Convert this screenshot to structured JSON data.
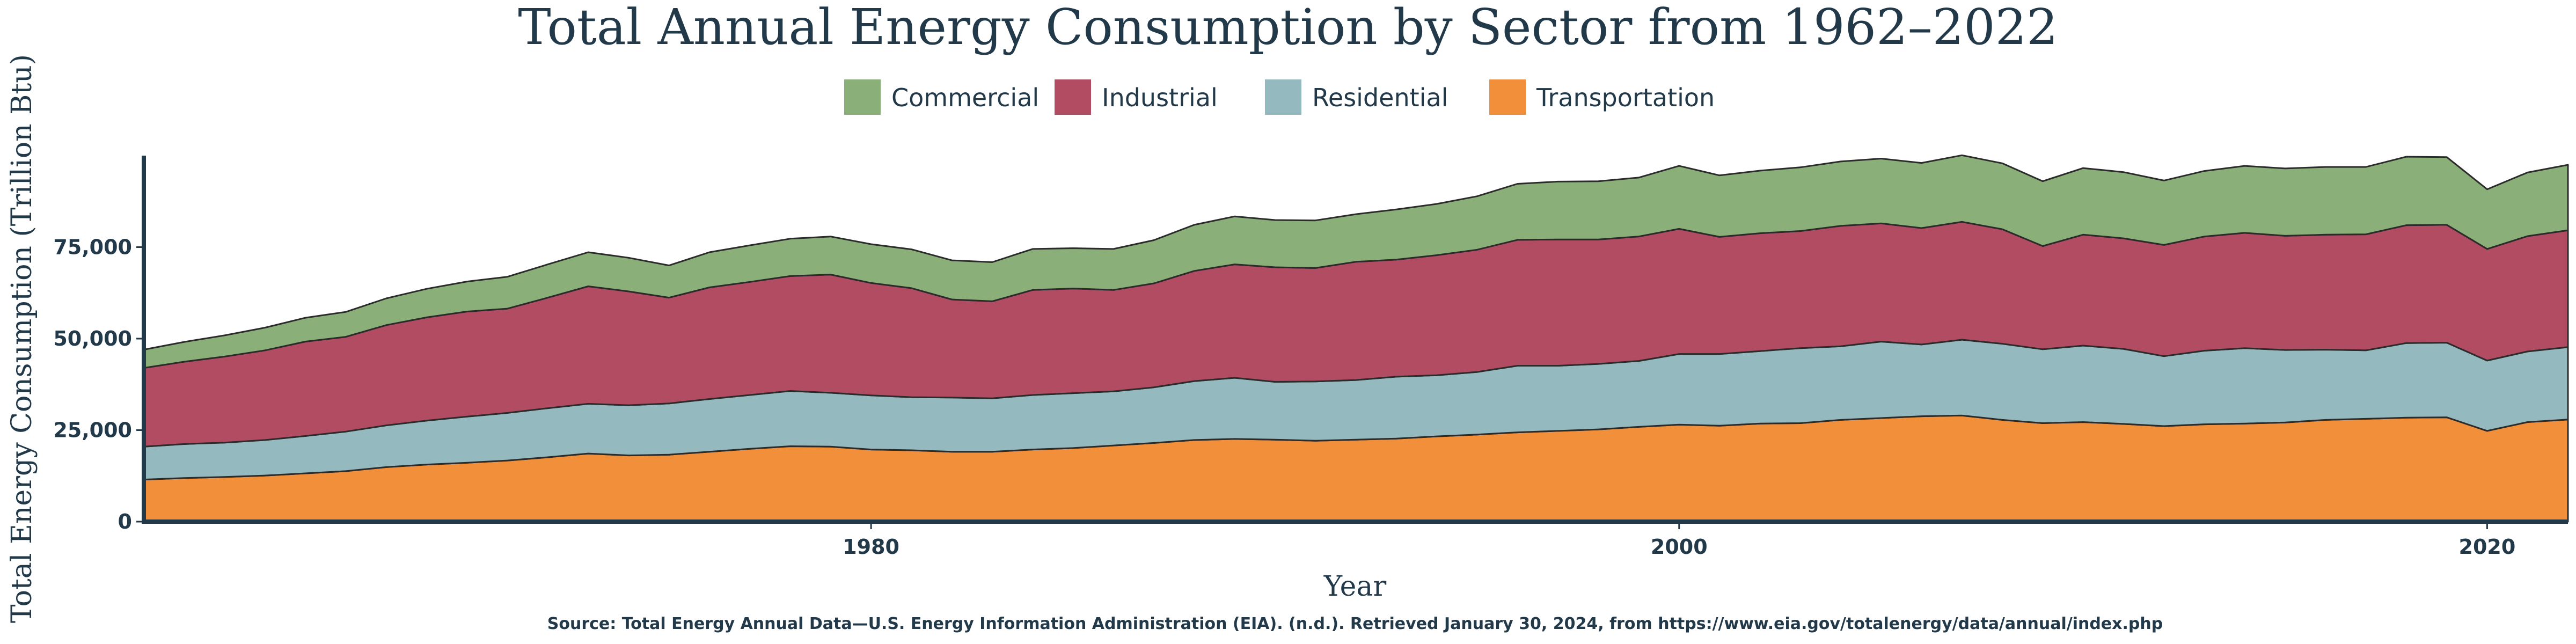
{
  "chart_data": {
    "type": "area",
    "stacked": true,
    "title": "Total Annual Energy Consumption by Sector from 1962–2022",
    "xlabel": "Year",
    "ylabel": "Total Energy Consumption (Trillion Btu)",
    "xlim": [
      1962,
      2022
    ],
    "ylim": [
      0,
      100000
    ],
    "xticks": [
      1980,
      2000,
      2020
    ],
    "xtick_labels": [
      "1980",
      "2000",
      "2020"
    ],
    "yticks": [
      0,
      25000,
      50000,
      75000
    ],
    "ytick_labels": [
      "0",
      "25,000",
      "50,000",
      "75,000"
    ],
    "grid": false,
    "legend_position": "top-center",
    "source": "Source: Total Energy Annual Data—U.S. Energy Information Administration (EIA). (n.d.). Retrieved January 30, 2024, from https://www.eia.gov/totalenergy/data/annual/index.php",
    "x": [
      1962,
      1963,
      1964,
      1965,
      1966,
      1967,
      1968,
      1969,
      1970,
      1971,
      1972,
      1973,
      1974,
      1975,
      1976,
      1977,
      1978,
      1979,
      1980,
      1981,
      1982,
      1983,
      1984,
      1985,
      1986,
      1987,
      1988,
      1989,
      1990,
      1991,
      1992,
      1993,
      1994,
      1995,
      1996,
      1997,
      1998,
      1999,
      2000,
      2001,
      2002,
      2003,
      2004,
      2005,
      2006,
      2007,
      2008,
      2009,
      2010,
      2011,
      2012,
      2013,
      2014,
      2015,
      2016,
      2017,
      2018,
      2019,
      2020,
      2021,
      2022
    ],
    "series": [
      {
        "name": "Transportation",
        "color": "#f28f3b",
        "values": [
          11500,
          11900,
          12200,
          12600,
          13200,
          13800,
          14900,
          15600,
          16100,
          16700,
          17600,
          18600,
          18100,
          18300,
          19100,
          19900,
          20600,
          20500,
          19700,
          19500,
          19100,
          19100,
          19700,
          20100,
          20800,
          21500,
          22300,
          22600,
          22400,
          22100,
          22400,
          22700,
          23300,
          23800,
          24400,
          24800,
          25200,
          25900,
          26500,
          26200,
          26800,
          26900,
          27800,
          28300,
          28800,
          29000,
          27800,
          26900,
          27200,
          26700,
          26100,
          26600,
          26800,
          27100,
          27800,
          28100,
          28400,
          28500,
          24800,
          27200,
          27900
        ]
      },
      {
        "name": "Residential",
        "color": "#94b9bf",
        "values": [
          9000,
          9300,
          9400,
          9700,
          10200,
          10800,
          11400,
          12000,
          12600,
          13000,
          13400,
          13600,
          13700,
          14000,
          14400,
          14700,
          15100,
          14700,
          14800,
          14500,
          14800,
          14600,
          14900,
          15000,
          14800,
          15200,
          16100,
          16700,
          15800,
          16200,
          16300,
          16900,
          16700,
          17100,
          18200,
          17800,
          17900,
          18000,
          19300,
          19600,
          19800,
          20500,
          20100,
          20900,
          19600,
          20700,
          20800,
          20200,
          20900,
          20500,
          19100,
          20100,
          20600,
          19800,
          19200,
          18700,
          20400,
          20400,
          19200,
          19300,
          19800
        ]
      },
      {
        "name": "Industrial",
        "color": "#b24c63",
        "values": [
          21500,
          22500,
          23500,
          24500,
          25800,
          25900,
          27400,
          28200,
          28700,
          28500,
          30200,
          32100,
          31100,
          28900,
          30500,
          30900,
          31400,
          32300,
          30700,
          29800,
          26800,
          26500,
          28700,
          28600,
          27700,
          28400,
          30100,
          31000,
          31300,
          31000,
          32300,
          32000,
          32800,
          33400,
          34400,
          34500,
          34000,
          34000,
          34200,
          32000,
          32200,
          32000,
          32900,
          32300,
          31800,
          32200,
          31300,
          28200,
          30300,
          30200,
          30400,
          31200,
          31500,
          31200,
          31400,
          31700,
          32200,
          32200,
          30500,
          31500,
          31900
        ]
      },
      {
        "name": "Commercial",
        "color": "#8aaf78",
        "values": [
          5000,
          5400,
          5800,
          6200,
          6500,
          6800,
          7300,
          7800,
          8200,
          8700,
          9100,
          9300,
          9200,
          8800,
          9600,
          10000,
          10200,
          10400,
          10600,
          10600,
          10700,
          10700,
          11200,
          11000,
          11200,
          11800,
          12600,
          13100,
          12900,
          13000,
          13000,
          13700,
          14000,
          14600,
          15300,
          15800,
          15900,
          16100,
          17200,
          16800,
          17100,
          17400,
          17600,
          17700,
          17800,
          18200,
          18000,
          17700,
          18200,
          18100,
          17600,
          17900,
          18300,
          18400,
          18500,
          18400,
          18700,
          18500,
          16300,
          17400,
          17900
        ]
      }
    ]
  }
}
